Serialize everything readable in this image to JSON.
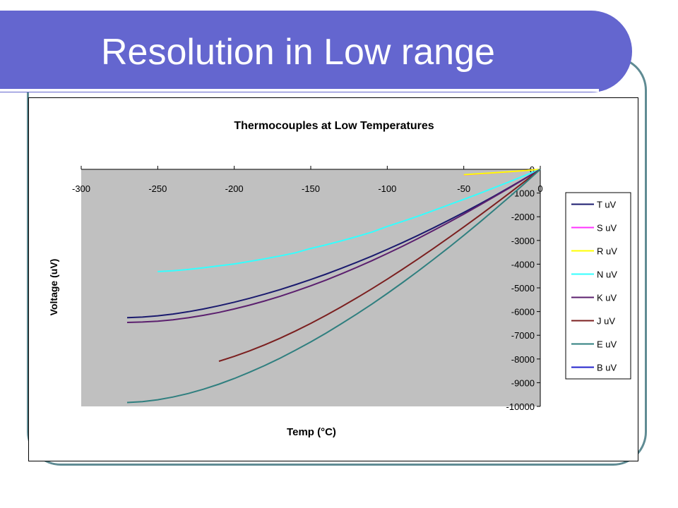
{
  "slide": {
    "title": "Resolution in Low range"
  },
  "colors": {
    "title_banner": "#6466cf",
    "frame": "#5f8b93",
    "plot_area": "#c0c0c0"
  },
  "chart_data": {
    "type": "line",
    "title": "Thermocouples at Low Temperatures",
    "xlabel": "Temp (°C)",
    "ylabel": "Voltage (uV)",
    "xlim": [
      -300,
      0
    ],
    "ylim": [
      -10000,
      0
    ],
    "x_ticks": [
      -300,
      -250,
      -200,
      -150,
      -100,
      -50,
      0
    ],
    "y_ticks": [
      0,
      -1000,
      -2000,
      -3000,
      -4000,
      -5000,
      -6000,
      -7000,
      -8000,
      -9000,
      -10000
    ],
    "x_tick_labels": [
      "-300",
      "-250",
      "-200",
      "-150",
      "-100",
      "-50",
      "0"
    ],
    "y_tick_labels": [
      "0",
      "-1000",
      "-2000",
      "-3000",
      "-4000",
      "-5000",
      "-6000",
      "-7000",
      "-8000",
      "-9000",
      "-10000"
    ],
    "grid": false,
    "legend_position": "right",
    "series": [
      {
        "name": "T uV",
        "color": "#1a1a6e",
        "x": [
          -270,
          -260,
          -250,
          -240,
          -230,
          -220,
          -210,
          -200,
          -190,
          -180,
          -170,
          -160,
          -150,
          -140,
          -130,
          -120,
          -110,
          -100,
          -90,
          -80,
          -70,
          -60,
          -50,
          -40,
          -30,
          -20,
          -10,
          0
        ],
        "y": [
          -6258,
          -6232,
          -6180,
          -6105,
          -6007,
          -5889,
          -5753,
          -5603,
          -5439,
          -5261,
          -5070,
          -4865,
          -4648,
          -4419,
          -4177,
          -3923,
          -3657,
          -3379,
          -3089,
          -2788,
          -2476,
          -2153,
          -1819,
          -1475,
          -1121,
          -757,
          -383,
          0
        ]
      },
      {
        "name": "S uV",
        "color": "#ff33ff",
        "x": [
          -50,
          -40,
          -30,
          -20,
          -10,
          0
        ],
        "y": [
          -236,
          -194,
          -150,
          -103,
          -53,
          0
        ]
      },
      {
        "name": "R uV",
        "color": "#ffff00",
        "x": [
          -50,
          -40,
          -30,
          -20,
          -10,
          0
        ],
        "y": [
          -226,
          -188,
          -145,
          -100,
          -51,
          0
        ]
      },
      {
        "name": "N uV",
        "color": "#33ffff",
        "x": [
          -250,
          -240,
          -230,
          -220,
          -210,
          -200,
          -190,
          -180,
          -170,
          -160,
          -150,
          -140,
          -130,
          -120,
          -110,
          -100,
          -90,
          -80,
          -70,
          -60,
          -50,
          -40,
          -30,
          -20,
          -10,
          0
        ],
        "y": [
          -4313,
          -4277,
          -4222,
          -4153,
          -4072,
          -3990,
          -3884,
          -3774,
          -3652,
          -3520,
          -3336,
          -3184,
          -3019,
          -2839,
          -2645,
          -2407,
          -2197,
          -1976,
          -1744,
          -1504,
          -1269,
          -1023,
          -772,
          -518,
          -260,
          0
        ]
      },
      {
        "name": "K uV",
        "color": "#5b1f6e",
        "x": [
          -270,
          -260,
          -250,
          -240,
          -230,
          -220,
          -210,
          -200,
          -190,
          -180,
          -170,
          -160,
          -150,
          -140,
          -130,
          -120,
          -110,
          -100,
          -90,
          -80,
          -70,
          -60,
          -50,
          -40,
          -30,
          -20,
          -10,
          0
        ],
        "y": [
          -6458,
          -6441,
          -6404,
          -6344,
          -6262,
          -6158,
          -6035,
          -5891,
          -5730,
          -5550,
          -5354,
          -5141,
          -4913,
          -4669,
          -4411,
          -4138,
          -3852,
          -3554,
          -3243,
          -2920,
          -2587,
          -2243,
          -1889,
          -1527,
          -1156,
          -778,
          -392,
          0
        ]
      },
      {
        "name": "J uV",
        "color": "#7b1f1f",
        "x": [
          -210,
          -200,
          -190,
          -180,
          -170,
          -160,
          -150,
          -140,
          -130,
          -120,
          -110,
          -100,
          -90,
          -80,
          -70,
          -60,
          -50,
          -40,
          -30,
          -20,
          -10,
          0
        ],
        "y": [
          -8095,
          -7890,
          -7659,
          -7403,
          -7123,
          -6821,
          -6500,
          -6159,
          -5801,
          -5426,
          -5037,
          -4633,
          -4215,
          -3786,
          -3344,
          -2893,
          -2431,
          -1961,
          -1482,
          -995,
          -501,
          0
        ]
      },
      {
        "name": "E uV",
        "color": "#2f7f7f",
        "x": [
          -270,
          -260,
          -250,
          -240,
          -230,
          -220,
          -210,
          -200,
          -190,
          -180,
          -170,
          -160,
          -150,
          -140,
          -130,
          -120,
          -110,
          -100,
          -90,
          -80,
          -70,
          -60,
          -50,
          -40,
          -30,
          -20,
          -10,
          0
        ],
        "y": [
          -9835,
          -9797,
          -9719,
          -9604,
          -9455,
          -9274,
          -9063,
          -8825,
          -8561,
          -8273,
          -7963,
          -7632,
          -7279,
          -6907,
          -6516,
          -6107,
          -5681,
          -5237,
          -4777,
          -4302,
          -3811,
          -3306,
          -2787,
          -2255,
          -1709,
          -1152,
          -582,
          0
        ]
      },
      {
        "name": "B uV",
        "color": "#2222cc",
        "x": [],
        "y": []
      }
    ]
  }
}
